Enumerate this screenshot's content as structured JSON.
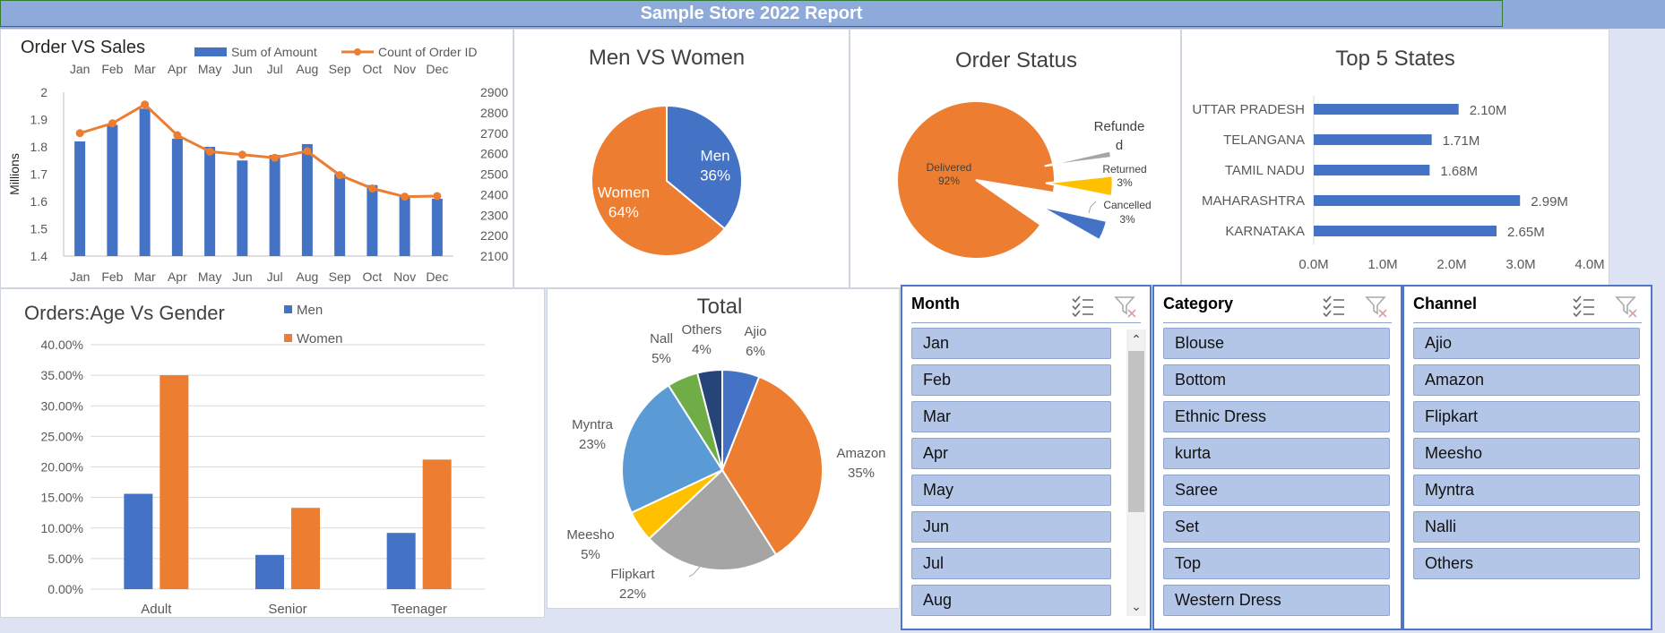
{
  "report": {
    "title": "Sample Store 2022 Report"
  },
  "chart_data": [
    {
      "type": "bar",
      "title": "Order VS Sales",
      "categories": [
        "Jan",
        "Feb",
        "Mar",
        "Apr",
        "May",
        "Jun",
        "Jul",
        "Aug",
        "Sep",
        "Oct",
        "Nov",
        "Dec"
      ],
      "series": [
        {
          "name": "Sum of Amount",
          "kind": "bar",
          "axis": "left",
          "color": "#4472c4",
          "values": [
            1.82,
            1.88,
            1.94,
            1.83,
            1.8,
            1.75,
            1.77,
            1.81,
            1.7,
            1.66,
            1.62,
            1.61
          ]
        },
        {
          "name": "Count of Order ID",
          "kind": "line",
          "axis": "right",
          "color": "#ed7d31",
          "values": [
            2700,
            2748,
            2840,
            2690,
            2610,
            2595,
            2580,
            2612,
            2495,
            2430,
            2390,
            2393
          ]
        }
      ],
      "ylabel": "Millions",
      "ylim": [
        1.4,
        2.0
      ],
      "y_ticks": [
        "1.4",
        "1.5",
        "1.6",
        "1.7",
        "1.8",
        "1.9",
        "2"
      ],
      "y2lim": [
        2100,
        2900
      ],
      "y2_ticks": [
        "2100",
        "2200",
        "2300",
        "2400",
        "2500",
        "2600",
        "2700",
        "2800",
        "2900"
      ],
      "legend": "top"
    },
    {
      "type": "pie",
      "title": "Men VS Women",
      "slices": [
        {
          "label": "Men",
          "pct_label": "36%",
          "value": 36,
          "color": "#4472c4"
        },
        {
          "label": "Women",
          "pct_label": "64%",
          "value": 64,
          "color": "#ed7d31"
        }
      ]
    },
    {
      "type": "pie",
      "title": "Order Status",
      "slices": [
        {
          "label": "Delivered",
          "pct_label": "92%",
          "value": 92,
          "color": "#ed7d31"
        },
        {
          "label": "Refunded",
          "pct_label": "",
          "value": 1,
          "color": "#a5a5a5"
        },
        {
          "label": "Returned",
          "pct_label": "3%",
          "value": 3,
          "color": "#ffc000"
        },
        {
          "label": "Cancelled",
          "pct_label": "3%",
          "value": 3,
          "color": "#4472c4"
        }
      ],
      "refunded_label_lines": [
        "Refunde",
        "d"
      ]
    },
    {
      "type": "bar",
      "orientation": "horizontal",
      "title": "Top 5 States",
      "categories": [
        "UTTAR PRADESH",
        "TELANGANA",
        "TAMIL NADU",
        "MAHARASHTRA",
        "KARNATAKA"
      ],
      "values": [
        2.1,
        1.71,
        1.68,
        2.99,
        2.65
      ],
      "data_labels": [
        "2.10M",
        "1.71M",
        "1.68M",
        "2.99M",
        "2.65M"
      ],
      "xlim": [
        0,
        4
      ],
      "x_ticks": [
        "0.0M",
        "1.0M",
        "2.0M",
        "3.0M",
        "4.0M"
      ],
      "color": "#4472c4"
    },
    {
      "type": "bar",
      "title": "Orders:Age Vs Gender",
      "categories": [
        "Adult",
        "Senior",
        "Teenager"
      ],
      "series": [
        {
          "name": "Men",
          "values": [
            15.6,
            5.6,
            9.2
          ],
          "color": "#4472c4"
        },
        {
          "name": "Women",
          "values": [
            35.0,
            13.3,
            21.2
          ],
          "color": "#ed7d31"
        }
      ],
      "ylim": [
        0,
        40
      ],
      "y_ticks": [
        "0.00%",
        "5.00%",
        "10.00%",
        "15.00%",
        "20.00%",
        "25.00%",
        "30.00%",
        "35.00%",
        "40.00%"
      ],
      "legend": "top"
    },
    {
      "type": "pie",
      "title": "Total",
      "slices": [
        {
          "label": "Ajio",
          "pct_label": "6%",
          "value": 6,
          "color": "#4472c4"
        },
        {
          "label": "Amazon",
          "pct_label": "35%",
          "value": 35,
          "color": "#ed7d31"
        },
        {
          "label": "Flipkart",
          "pct_label": "22%",
          "value": 22,
          "color": "#a5a5a5"
        },
        {
          "label": "Meesho",
          "pct_label": "5%",
          "value": 5,
          "color": "#ffc000"
        },
        {
          "label": "Myntra",
          "pct_label": "23%",
          "value": 23,
          "color": "#5b9bd5"
        },
        {
          "label": "Nall",
          "pct_label": "5%",
          "value": 5,
          "color": "#70ad47"
        },
        {
          "label": "Others",
          "pct_label": "4%",
          "value": 4,
          "color": "#264478"
        }
      ]
    }
  ],
  "slicers": {
    "month": {
      "title": "Month",
      "items": [
        "Jan",
        "Feb",
        "Mar",
        "Apr",
        "May",
        "Jun",
        "Jul",
        "Aug"
      ]
    },
    "category": {
      "title": "Category",
      "items": [
        "Blouse",
        "Bottom",
        "Ethnic Dress",
        "kurta",
        "Saree",
        "Set",
        "Top",
        "Western Dress"
      ]
    },
    "channel": {
      "title": "Channel",
      "items": [
        "Ajio",
        "Amazon",
        "Flipkart",
        "Meesho",
        "Myntra",
        "Nalli",
        "Others"
      ]
    }
  }
}
